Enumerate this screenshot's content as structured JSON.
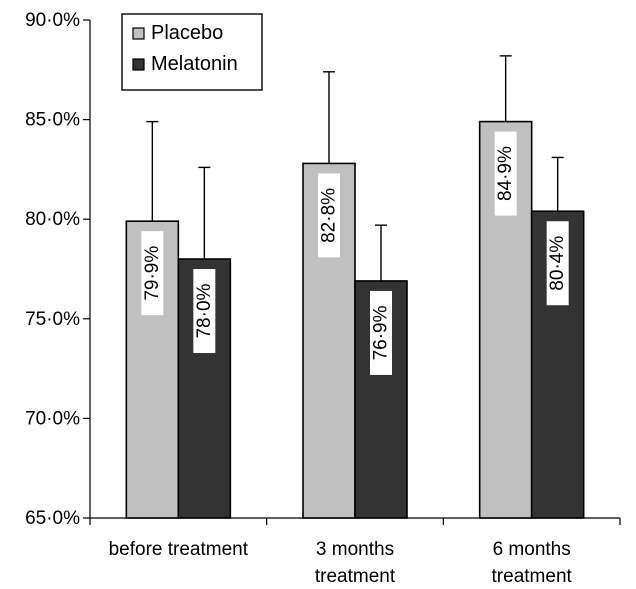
{
  "chart_data": {
    "type": "bar",
    "title": "",
    "xlabel": "",
    "ylabel": "",
    "ylim": [
      65,
      90
    ],
    "yticks": [
      65,
      70,
      75,
      80,
      85,
      90
    ],
    "ytick_labels": [
      "65·0%",
      "70·0%",
      "75·0%",
      "80·0%",
      "85·0%",
      "90·0%"
    ],
    "categories": [
      [
        "before treatment"
      ],
      [
        "3 months",
        "treatment"
      ],
      [
        "6 months",
        "treatment"
      ]
    ],
    "series": [
      {
        "name": "Placebo",
        "color": "#c0c0c0",
        "values": [
          79.9,
          82.8,
          84.9
        ],
        "errors": [
          5.0,
          4.6,
          3.3
        ],
        "labels": [
          "79·9%",
          "82·8%",
          "84·9%"
        ]
      },
      {
        "name": "Melatonin",
        "color": "#333333",
        "values": [
          78.0,
          76.9,
          80.4
        ],
        "errors": [
          4.6,
          2.8,
          2.7
        ],
        "labels": [
          "78·0%",
          "76·9%",
          "80·4%"
        ]
      }
    ],
    "error_bars": "upper",
    "legend_position": "top-left",
    "grid": false
  }
}
